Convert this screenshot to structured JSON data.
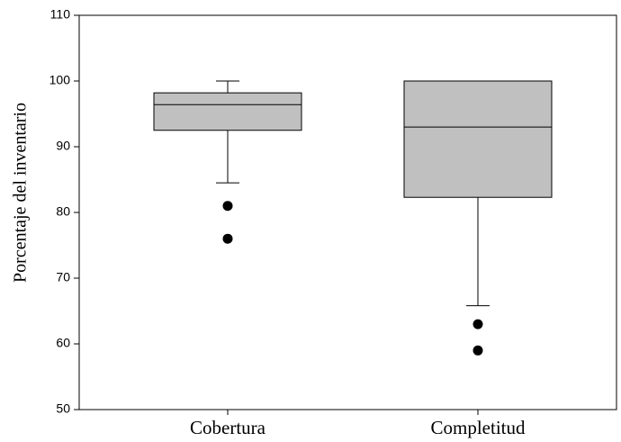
{
  "chart_data": {
    "type": "box",
    "y_label": "Porcentaje del inventario",
    "categories": [
      "Cobertura",
      "Completitud"
    ],
    "stats": [
      {
        "whisker_low": 84.5,
        "q1": 92.5,
        "median": 96.4,
        "q3": 98.2,
        "whisker_high": 100,
        "outliers": [
          81,
          76
        ]
      },
      {
        "whisker_low": 65.8,
        "q1": 82.3,
        "median": 93,
        "q3": 100,
        "whisker_high": 100,
        "outliers": [
          63,
          59
        ]
      }
    ],
    "color": "#c0c0c0",
    "ylim": [
      50,
      110
    ],
    "yticks": [
      50,
      60,
      70,
      80,
      90,
      100,
      110
    ]
  }
}
